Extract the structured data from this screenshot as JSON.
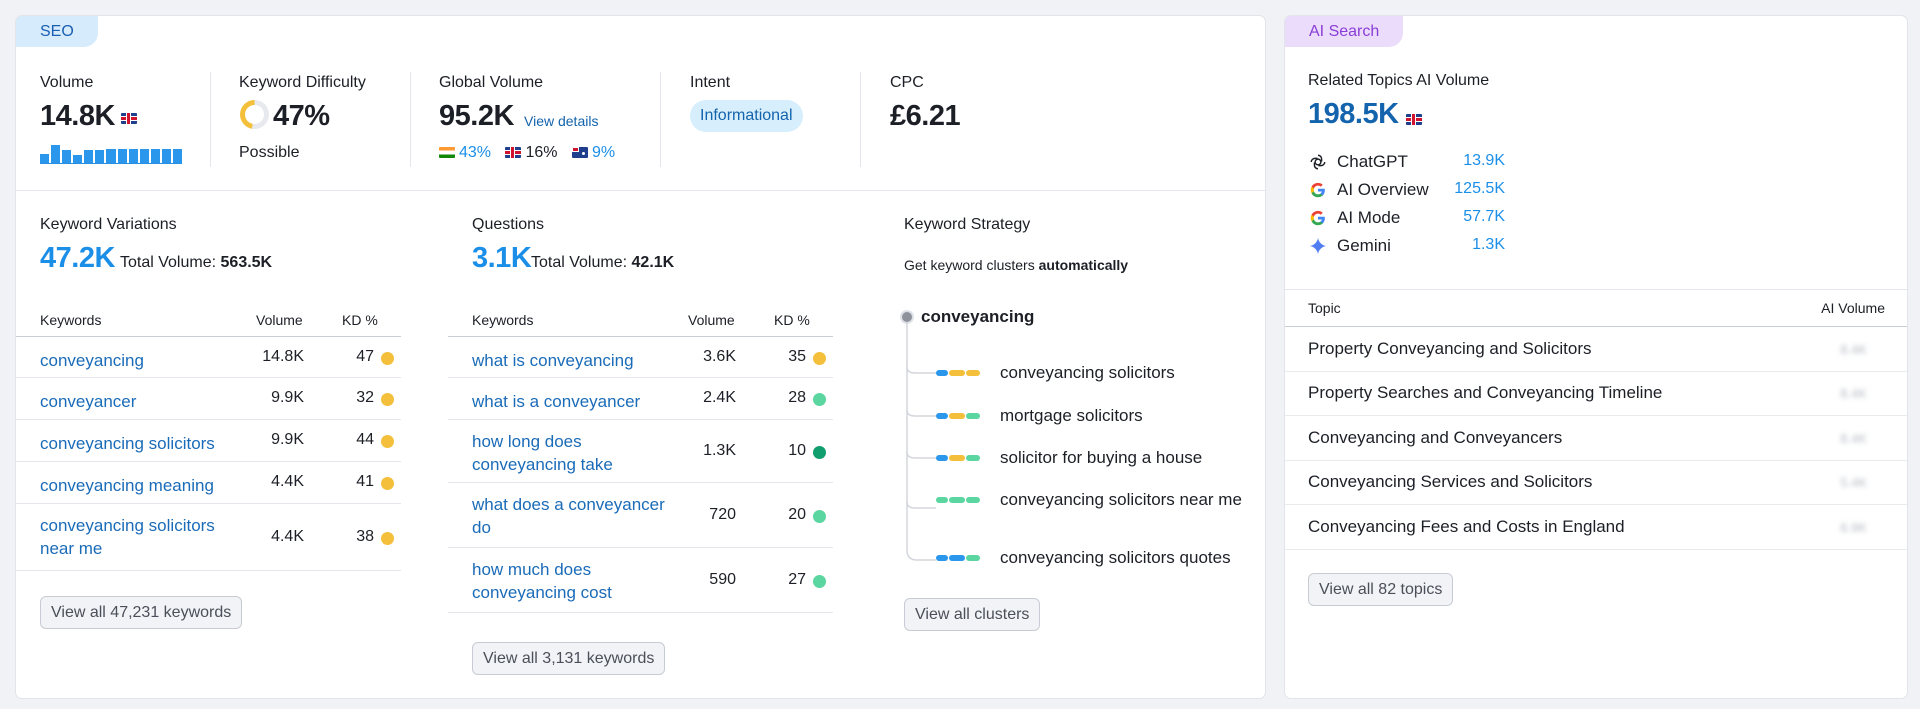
{
  "seo_card": {
    "tag": "SEO",
    "volume": {
      "label": "Volume",
      "value": "14.8K",
      "trend": [
        0.45,
        0.85,
        0.6,
        0.4,
        0.6,
        0.6,
        0.65,
        0.65,
        0.65,
        0.65,
        0.65,
        0.65,
        0.65
      ]
    },
    "kd": {
      "label": "Keyword Difficulty",
      "value": "47%",
      "percent": 47,
      "rating": "Possible"
    },
    "global_volume": {
      "label": "Global Volume",
      "value": "95.2K",
      "link": "View details",
      "countries": [
        {
          "flag": "india-flag",
          "pct": "43%"
        },
        {
          "flag": "uk-flag",
          "pct": "16%"
        },
        {
          "flag": "australia-flag",
          "pct": "9%"
        }
      ]
    },
    "intent": {
      "label": "Intent",
      "value": "Informational"
    },
    "cpc": {
      "label": "CPC",
      "value": "£6.21"
    },
    "variations": {
      "title": "Keyword Variations",
      "count": "47.2K",
      "total_label": "Total Volume:",
      "total": "563.5K",
      "headers": [
        "Keywords",
        "Volume",
        "KD %"
      ],
      "rows": [
        {
          "kw": "conveyancing",
          "vol": "14.8K",
          "kd": "47",
          "color": "yellow"
        },
        {
          "kw": "conveyancer",
          "vol": "9.9K",
          "kd": "32",
          "color": "yellow"
        },
        {
          "kw": "conveyancing solicitors",
          "vol": "9.9K",
          "kd": "44",
          "color": "yellow"
        },
        {
          "kw": "conveyancing meaning",
          "vol": "4.4K",
          "kd": "41",
          "color": "yellow"
        },
        {
          "kw": "conveyancing solicitors near me",
          "vol": "4.4K",
          "kd": "38",
          "color": "yellow"
        }
      ],
      "button": "View all 47,231 keywords"
    },
    "questions": {
      "title": "Questions",
      "count": "3.1K",
      "total_label": "Total Volume:",
      "total": "42.1K",
      "headers": [
        "Keywords",
        "Volume",
        "KD %"
      ],
      "rows": [
        {
          "kw": "what is conveyancing",
          "vol": "3.6K",
          "kd": "35",
          "color": "yellow"
        },
        {
          "kw": "what is a conveyancer",
          "vol": "2.4K",
          "kd": "28",
          "color": "green"
        },
        {
          "kw": "how long does conveyancing take",
          "vol": "1.3K",
          "kd": "10",
          "color": "darkgreen"
        },
        {
          "kw": "what does a conveyancer do",
          "vol": "720",
          "kd": "20",
          "color": "green"
        },
        {
          "kw": "how much does conveyancing cost",
          "vol": "590",
          "kd": "27",
          "color": "green"
        }
      ],
      "button": "View all 3,131 keywords"
    },
    "strategy": {
      "title": "Keyword Strategy",
      "subtitle_a": "Get keyword clusters",
      "subtitle_b": "automatically",
      "root": "conveyancing",
      "clusters": [
        "conveyancing solicitors",
        "mortgage solicitors",
        "solicitor for buying a house",
        "conveyancing solicitors near me",
        "conveyancing solicitors quotes"
      ],
      "button": "View all clusters"
    }
  },
  "ai_card": {
    "tag": "AI Search",
    "label": "Related Topics AI Volume",
    "value": "198.5K",
    "sources": [
      {
        "icon": "chatgpt-icon",
        "name": "ChatGPT",
        "value": "13.9K"
      },
      {
        "icon": "google-icon",
        "name": "AI Overview",
        "value": "125.5K"
      },
      {
        "icon": "google-icon",
        "name": "AI Mode",
        "value": "57.7K"
      },
      {
        "icon": "gemini-icon",
        "name": "Gemini",
        "value": "1.3K"
      }
    ],
    "headers": [
      "Topic",
      "AI Volume"
    ],
    "topics": [
      {
        "name": "Property Conveyancing and Solicitors",
        "vol": "8.4K"
      },
      {
        "name": "Property Searches and Conveyancing Timeline",
        "vol": "8.4K"
      },
      {
        "name": "Conveyancing and Conveyancers",
        "vol": "8.4K"
      },
      {
        "name": "Conveyancing Services and Solicitors",
        "vol": "5.4K"
      },
      {
        "name": "Conveyancing Fees and Costs in England",
        "vol": "6.9K"
      }
    ],
    "button": "View all 82 topics"
  }
}
